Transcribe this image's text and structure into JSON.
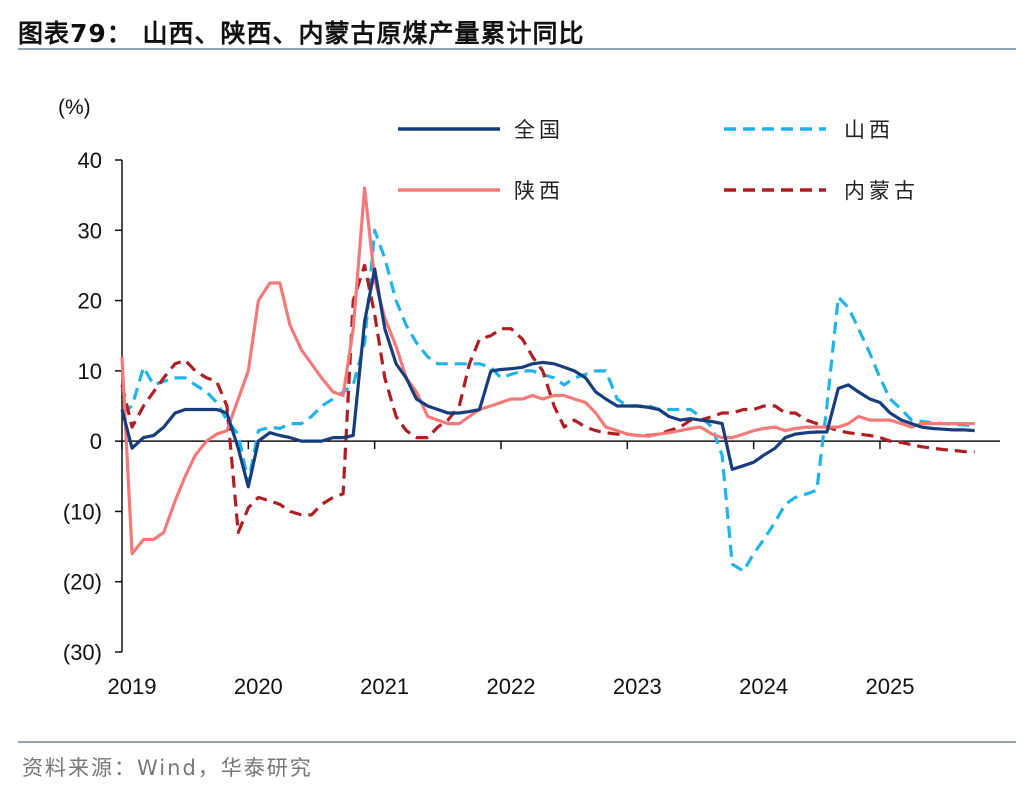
{
  "header": {
    "title": "图表79：  山西、陕西、内蒙古原煤产量累计同比"
  },
  "footer": {
    "source": "资料来源：Wind，华泰研究"
  },
  "colors": {
    "national": "#173E7A",
    "shanxi": "#1FB4EA",
    "shaanxi": "#F47A7A",
    "neimenggu": "#B01E23",
    "rule": "#8FA3B8"
  },
  "chart_data": {
    "type": "line",
    "title": "山西、陕西、内蒙古原煤产量累计同比",
    "unit_label": "(%)",
    "ylim": [
      -30,
      40
    ],
    "yticks": [
      40,
      30,
      20,
      10,
      0,
      -10,
      -20,
      -30
    ],
    "ytick_labels": [
      "40",
      "30",
      "20",
      "10",
      "0",
      "(10)",
      "(20)",
      "(30)"
    ],
    "xlim": [
      2019,
      2025.95
    ],
    "xticks": [
      2019,
      2020,
      2021,
      2022,
      2023,
      2024,
      2025
    ],
    "xtick_labels": [
      "2019",
      "2020",
      "2021",
      "2022",
      "2023",
      "2024",
      "2025"
    ],
    "legend_position": "top",
    "series": [
      {
        "name": "全国",
        "style": "solid",
        "color": "#173E7A",
        "x": [
          2019.0,
          2019.08,
          2019.17,
          2019.25,
          2019.33,
          2019.42,
          2019.5,
          2019.58,
          2019.67,
          2019.75,
          2019.83,
          2019.92,
          2020.0,
          2020.08,
          2020.17,
          2020.25,
          2020.33,
          2020.42,
          2020.5,
          2020.58,
          2020.67,
          2020.75,
          2020.83,
          2020.92,
          2021.0,
          2021.08,
          2021.17,
          2021.25,
          2021.33,
          2021.42,
          2021.5,
          2021.58,
          2021.67,
          2021.75,
          2021.83,
          2021.92,
          2022.0,
          2022.08,
          2022.17,
          2022.25,
          2022.33,
          2022.42,
          2022.5,
          2022.58,
          2022.67,
          2022.75,
          2022.83,
          2022.92,
          2023.0,
          2023.08,
          2023.17,
          2023.25,
          2023.33,
          2023.42,
          2023.5,
          2023.58,
          2023.67,
          2023.75,
          2023.83,
          2023.92,
          2024.0,
          2024.08,
          2024.17,
          2024.25,
          2024.33,
          2024.42,
          2024.5,
          2024.58,
          2024.67,
          2024.75,
          2024.83,
          2024.92,
          2025.0,
          2025.08,
          2025.17,
          2025.25,
          2025.33,
          2025.42,
          2025.5,
          2025.58,
          2025.67,
          2025.75
        ],
        "values": [
          4.5,
          -1.0,
          0.5,
          0.8,
          2.0,
          4.0,
          4.5,
          4.5,
          4.5,
          4.5,
          4.0,
          -1.0,
          -6.5,
          0.0,
          1.2,
          0.8,
          0.5,
          0.0,
          0.0,
          0.0,
          0.5,
          0.5,
          0.8,
          17.0,
          24.5,
          16.0,
          11.0,
          9.0,
          6.0,
          5.0,
          4.5,
          4.0,
          4.0,
          4.2,
          4.5,
          10.0,
          10.2,
          10.3,
          10.5,
          11.0,
          11.2,
          11.0,
          10.5,
          10.0,
          9.0,
          7.0,
          6.0,
          5.0,
          5.0,
          5.0,
          4.8,
          4.5,
          3.5,
          3.0,
          3.2,
          3.0,
          2.8,
          2.5,
          -4.0,
          -3.5,
          -3.0,
          -2.0,
          -1.0,
          0.5,
          1.0,
          1.2,
          1.3,
          1.3,
          7.5,
          8.0,
          7.0,
          6.0,
          5.5,
          4.0,
          3.0,
          2.5,
          2.0,
          1.8,
          1.7,
          1.6,
          1.6,
          1.5
        ]
      },
      {
        "name": "山西",
        "style": "dashed",
        "color": "#1FB4EA",
        "x": [
          2019.0,
          2019.08,
          2019.17,
          2019.25,
          2019.33,
          2019.42,
          2019.5,
          2019.58,
          2019.67,
          2019.75,
          2019.83,
          2019.92,
          2020.0,
          2020.08,
          2020.17,
          2020.25,
          2020.33,
          2020.42,
          2020.5,
          2020.58,
          2020.67,
          2020.75,
          2020.83,
          2020.92,
          2021.0,
          2021.08,
          2021.17,
          2021.25,
          2021.33,
          2021.42,
          2021.5,
          2021.58,
          2021.67,
          2021.75,
          2021.83,
          2021.92,
          2022.0,
          2022.08,
          2022.17,
          2022.25,
          2022.33,
          2022.42,
          2022.5,
          2022.58,
          2022.67,
          2022.75,
          2022.83,
          2022.92,
          2023.0,
          2023.08,
          2023.17,
          2023.25,
          2023.33,
          2023.42,
          2023.5,
          2023.58,
          2023.67,
          2023.75,
          2023.83,
          2023.92,
          2024.0,
          2024.08,
          2024.17,
          2024.25,
          2024.33,
          2024.42,
          2024.5,
          2024.58,
          2024.67,
          2024.75,
          2024.83,
          2024.92,
          2025.0,
          2025.08,
          2025.17,
          2025.25,
          2025.33,
          2025.42,
          2025.5,
          2025.58,
          2025.67,
          2025.75
        ],
        "values": [
          4.0,
          5.0,
          10.5,
          8.0,
          8.5,
          9.0,
          9.0,
          8.0,
          7.0,
          5.5,
          3.0,
          1.0,
          -6.0,
          1.5,
          2.0,
          1.8,
          2.5,
          2.5,
          3.5,
          5.0,
          6.0,
          7.0,
          8.0,
          14.0,
          30.0,
          26.0,
          20.0,
          16.5,
          14.0,
          12.0,
          11.0,
          11.0,
          11.0,
          11.0,
          11.0,
          10.5,
          9.0,
          9.5,
          10.0,
          10.0,
          9.5,
          9.0,
          8.0,
          9.0,
          9.5,
          10.0,
          10.0,
          6.0,
          5.0,
          5.0,
          5.0,
          4.5,
          4.5,
          4.5,
          4.5,
          3.5,
          2.0,
          -2.0,
          -17.5,
          -18.5,
          -16.0,
          -14.0,
          -11.5,
          -9.0,
          -8.0,
          -7.5,
          -7.0,
          5.0,
          20.5,
          19.0,
          16.0,
          12.5,
          9.0,
          6.0,
          4.5,
          3.0,
          2.8,
          2.6,
          2.5,
          2.4,
          2.3,
          2.2
        ]
      },
      {
        "name": "陕西",
        "style": "solid",
        "color": "#F47A7A",
        "x": [
          2019.0,
          2019.08,
          2019.17,
          2019.25,
          2019.33,
          2019.42,
          2019.5,
          2019.58,
          2019.67,
          2019.75,
          2019.83,
          2019.92,
          2020.0,
          2020.08,
          2020.17,
          2020.25,
          2020.33,
          2020.42,
          2020.5,
          2020.58,
          2020.67,
          2020.75,
          2020.83,
          2020.92,
          2021.0,
          2021.08,
          2021.17,
          2021.25,
          2021.33,
          2021.42,
          2021.5,
          2021.58,
          2021.67,
          2021.75,
          2021.83,
          2021.92,
          2022.0,
          2022.08,
          2022.17,
          2022.25,
          2022.33,
          2022.42,
          2022.5,
          2022.58,
          2022.67,
          2022.75,
          2022.83,
          2022.92,
          2023.0,
          2023.08,
          2023.17,
          2023.25,
          2023.33,
          2023.42,
          2023.5,
          2023.58,
          2023.67,
          2023.75,
          2023.83,
          2023.92,
          2024.0,
          2024.08,
          2024.17,
          2024.25,
          2024.33,
          2024.42,
          2024.5,
          2024.58,
          2024.67,
          2024.75,
          2024.83,
          2024.92,
          2025.0,
          2025.08,
          2025.17,
          2025.25,
          2025.33,
          2025.42,
          2025.5,
          2025.58,
          2025.67,
          2025.75
        ],
        "values": [
          12.0,
          -16.0,
          -14.0,
          -14.0,
          -13.0,
          -8.5,
          -5.0,
          -2.0,
          0.0,
          1.0,
          1.5,
          6.0,
          10.0,
          20.0,
          22.5,
          22.5,
          16.5,
          13.0,
          11.0,
          9.0,
          7.0,
          6.5,
          16.0,
          36.0,
          23.0,
          17.5,
          13.5,
          9.0,
          7.0,
          3.5,
          3.0,
          2.5,
          2.5,
          3.5,
          4.5,
          5.0,
          5.5,
          6.0,
          6.0,
          6.5,
          6.0,
          6.5,
          6.5,
          6.0,
          5.5,
          4.0,
          2.0,
          1.5,
          1.0,
          0.8,
          0.7,
          1.0,
          1.2,
          1.5,
          1.8,
          2.0,
          1.0,
          0.5,
          0.5,
          1.0,
          1.5,
          1.8,
          2.0,
          1.5,
          1.8,
          2.0,
          2.0,
          2.0,
          2.0,
          2.5,
          3.5,
          3.0,
          3.0,
          3.0,
          2.5,
          2.0,
          2.5,
          2.5,
          2.5,
          2.5,
          2.5,
          2.5
        ]
      },
      {
        "name": "内蒙古",
        "style": "dashed",
        "color": "#B01E23",
        "x": [
          2019.0,
          2019.08,
          2019.17,
          2019.25,
          2019.33,
          2019.42,
          2019.5,
          2019.58,
          2019.67,
          2019.75,
          2019.83,
          2019.92,
          2020.0,
          2020.08,
          2020.17,
          2020.25,
          2020.33,
          2020.42,
          2020.5,
          2020.58,
          2020.67,
          2020.75,
          2020.83,
          2020.92,
          2021.0,
          2021.08,
          2021.17,
          2021.25,
          2021.33,
          2021.42,
          2021.5,
          2021.58,
          2021.67,
          2021.75,
          2021.83,
          2021.92,
          2022.0,
          2022.08,
          2022.17,
          2022.25,
          2022.33,
          2022.42,
          2022.5,
          2022.58,
          2022.67,
          2022.75,
          2022.83,
          2022.92,
          2023.0,
          2023.08,
          2023.17,
          2023.25,
          2023.33,
          2023.42,
          2023.5,
          2023.58,
          2023.67,
          2023.75,
          2023.83,
          2023.92,
          2024.0,
          2024.08,
          2024.17,
          2024.25,
          2024.33,
          2024.42,
          2024.5,
          2024.58,
          2024.67,
          2024.75,
          2024.83,
          2024.92,
          2025.0,
          2025.08,
          2025.17,
          2025.25,
          2025.33,
          2025.42,
          2025.5,
          2025.58,
          2025.67,
          2025.75
        ],
        "values": [
          8.0,
          2.0,
          5.0,
          7.0,
          9.0,
          11.0,
          11.5,
          10.0,
          9.0,
          8.5,
          5.0,
          -13.0,
          -9.5,
          -8.0,
          -8.5,
          -9.0,
          -10.0,
          -10.5,
          -10.5,
          -9.0,
          -8.0,
          -7.5,
          20.0,
          25.0,
          18.0,
          9.0,
          3.5,
          1.5,
          0.5,
          0.5,
          2.0,
          3.0,
          5.0,
          11.0,
          14.5,
          15.0,
          16.0,
          16.0,
          14.5,
          12.0,
          10.0,
          5.0,
          2.0,
          3.0,
          2.0,
          1.5,
          1.2,
          1.0,
          1.0,
          0.8,
          0.8,
          1.0,
          1.5,
          2.0,
          3.0,
          3.0,
          3.5,
          4.0,
          4.0,
          4.5,
          4.5,
          5.0,
          5.0,
          4.0,
          4.0,
          3.0,
          2.5,
          2.0,
          1.5,
          1.2,
          1.0,
          0.8,
          0.5,
          0.0,
          -0.2,
          -0.5,
          -0.8,
          -1.0,
          -1.2,
          -1.3,
          -1.5,
          -1.5
        ]
      }
    ]
  }
}
